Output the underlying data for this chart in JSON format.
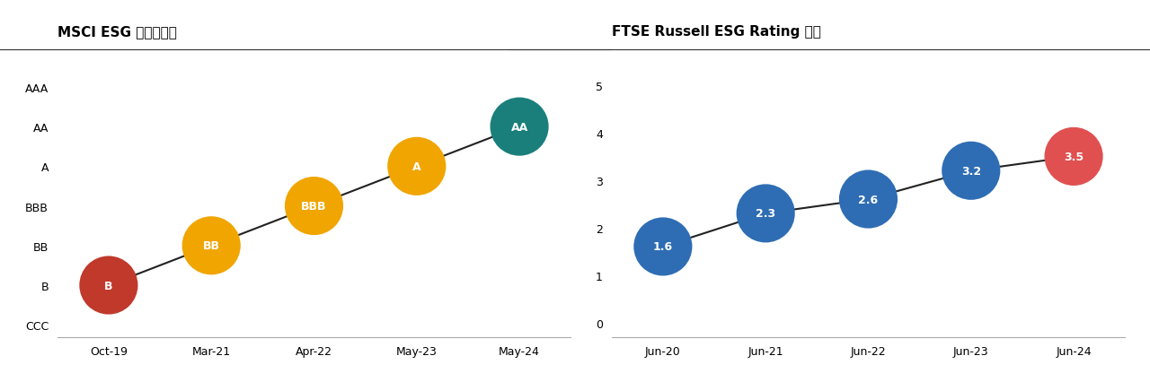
{
  "left_title": "MSCI ESG 格付け推移",
  "right_title": "FTSE Russell ESG Rating 推移",
  "msci": {
    "x_labels": [
      "Oct-19",
      "Mar-21",
      "Apr-22",
      "May-23",
      "May-24"
    ],
    "x_values": [
      0,
      1,
      2,
      3,
      4
    ],
    "ratings": [
      "B",
      "BB",
      "BBB",
      "A",
      "AA"
    ],
    "y_values": [
      1,
      2,
      3,
      4,
      5
    ],
    "colors": [
      "#c0392b",
      "#f0a500",
      "#f0a500",
      "#f0a500",
      "#1a7f7a"
    ],
    "ytick_labels": [
      "CCC",
      "B",
      "BB",
      "BBB",
      "A",
      "AA",
      "AAA"
    ],
    "ytick_values": [
      0,
      1,
      2,
      3,
      4,
      5,
      6
    ],
    "ylim": [
      -0.3,
      7
    ],
    "marker_size": 2200
  },
  "ftse": {
    "x_labels": [
      "Jun-20",
      "Jun-21",
      "Jun-22",
      "Jun-23",
      "Jun-24"
    ],
    "x_values": [
      0,
      1,
      2,
      3,
      4
    ],
    "values": [
      1.6,
      2.3,
      2.6,
      3.2,
      3.5
    ],
    "colors": [
      "#2e6db4",
      "#2e6db4",
      "#2e6db4",
      "#2e6db4",
      "#e05050"
    ],
    "ytick_labels": [
      "0",
      "1",
      "2",
      "3",
      "4",
      "5"
    ],
    "ytick_values": [
      0,
      1,
      2,
      3,
      4,
      5
    ],
    "ylim": [
      -0.3,
      5.8
    ],
    "marker_size": 2200
  },
  "background_color": "#ffffff",
  "line_color": "#222222",
  "text_color": "#ffffff",
  "title_fontsize": 11,
  "label_fontsize": 9,
  "tick_fontsize": 9
}
